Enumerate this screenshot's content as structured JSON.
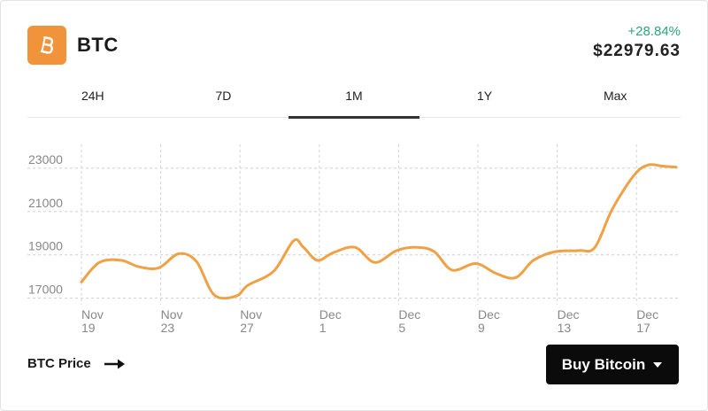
{
  "coin": {
    "symbol": "BTC",
    "logo_icon": "bitcoin-icon",
    "logo_color": "#f0933b"
  },
  "price": {
    "change": "+28.84%",
    "change_color": "#2ca57a",
    "value": "$22979.63"
  },
  "tabs": [
    {
      "label": "24H",
      "active": false
    },
    {
      "label": "7D",
      "active": false
    },
    {
      "label": "1M",
      "active": true
    },
    {
      "label": "1Y",
      "active": false
    },
    {
      "label": "Max",
      "active": false
    }
  ],
  "footer": {
    "label": "BTC Price",
    "arrow_icon": "arrow-right-icon"
  },
  "buy_button": {
    "label": "Buy Bitcoin",
    "icon": "caret-down-icon"
  },
  "chart_data": {
    "type": "line",
    "line_color": "#f0a045",
    "grid": true,
    "y_ticks": [
      17000,
      19000,
      21000,
      23000
    ],
    "ylim": [
      16700,
      24100
    ],
    "x_ticks": [
      {
        "x": 0,
        "line1": "Nov",
        "line2": "19"
      },
      {
        "x": 4,
        "line1": "Nov",
        "line2": "23"
      },
      {
        "x": 8,
        "line1": "Nov",
        "line2": "27"
      },
      {
        "x": 12,
        "line1": "Dec",
        "line2": "1"
      },
      {
        "x": 16,
        "line1": "Dec",
        "line2": "5"
      },
      {
        "x": 20,
        "line1": "Dec",
        "line2": "9"
      },
      {
        "x": 24,
        "line1": "Dec",
        "line2": "13"
      },
      {
        "x": 28,
        "line1": "Dec",
        "line2": "17"
      }
    ],
    "xlim": [
      0,
      30
    ],
    "series": [
      {
        "points": [
          [
            0,
            17750
          ],
          [
            0.9,
            18650
          ],
          [
            2.0,
            18750
          ],
          [
            2.9,
            18450
          ],
          [
            3.9,
            18400
          ],
          [
            4.9,
            19050
          ],
          [
            5.8,
            18700
          ],
          [
            6.7,
            17150
          ],
          [
            7.8,
            17100
          ],
          [
            8.4,
            17600
          ],
          [
            9.7,
            18250
          ],
          [
            10.7,
            19650
          ],
          [
            11.2,
            19350
          ],
          [
            11.9,
            18750
          ],
          [
            12.7,
            19100
          ],
          [
            13.8,
            19350
          ],
          [
            14.8,
            18650
          ],
          [
            15.9,
            19200
          ],
          [
            16.9,
            19350
          ],
          [
            17.8,
            19150
          ],
          [
            18.7,
            18300
          ],
          [
            19.9,
            18600
          ],
          [
            20.9,
            18150
          ],
          [
            21.9,
            17950
          ],
          [
            22.8,
            18750
          ],
          [
            23.9,
            19150
          ],
          [
            25.1,
            19200
          ],
          [
            25.9,
            19350
          ],
          [
            26.8,
            21150
          ],
          [
            27.9,
            22700
          ],
          [
            28.6,
            23150
          ],
          [
            29.3,
            23100
          ],
          [
            30.0,
            23050
          ]
        ]
      }
    ]
  }
}
